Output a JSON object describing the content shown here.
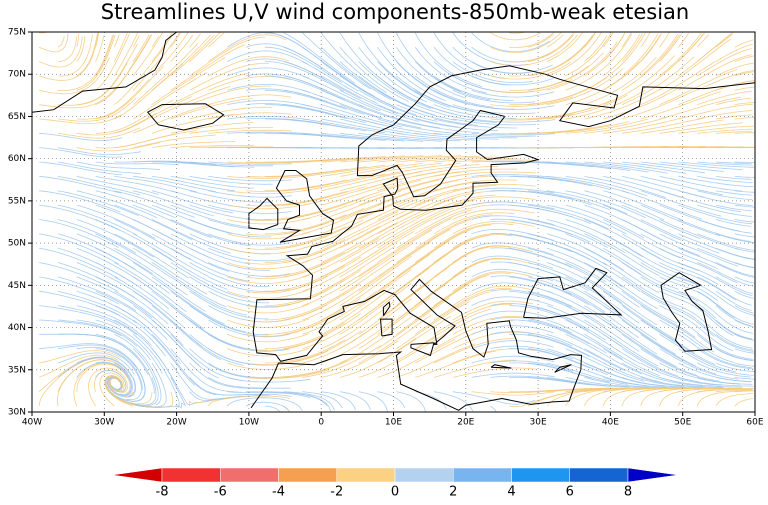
{
  "title": "Streamlines U,V wind components-850mb-weak etesian",
  "map": {
    "lonlim": [
      -40,
      60
    ],
    "latlim": [
      30,
      75
    ],
    "lon_ticks": [
      {
        "value": -40,
        "label": "40W"
      },
      {
        "value": -30,
        "label": "30W"
      },
      {
        "value": -20,
        "label": "20W"
      },
      {
        "value": -10,
        "label": "10W"
      },
      0,
      {
        "value": 10,
        "label": "10E"
      },
      {
        "value": 20,
        "label": "20E"
      },
      {
        "value": 30,
        "label": "30E"
      },
      {
        "value": 40,
        "label": "40E"
      },
      {
        "value": 50,
        "label": "50E"
      },
      {
        "value": 60,
        "label": "60E"
      }
    ],
    "lat_ticks": [
      {
        "value": 30,
        "label": "30N"
      },
      {
        "value": 35,
        "label": "35N"
      },
      {
        "value": 40,
        "label": "40N"
      },
      {
        "value": 45,
        "label": "45N"
      },
      {
        "value": 50,
        "label": "50N"
      },
      {
        "value": 55,
        "label": "55N"
      },
      {
        "value": 60,
        "label": "60N"
      },
      {
        "value": 65,
        "label": "65N"
      },
      {
        "value": 70,
        "label": "70N"
      },
      {
        "value": 75,
        "label": "75N"
      }
    ],
    "grid": true
  },
  "colorbar": {
    "levels": [
      -8,
      -6,
      -4,
      -2,
      0,
      2,
      4,
      6,
      8
    ],
    "colors": [
      "#d20000",
      "#f03232",
      "#f06e6e",
      "#f5a050",
      "#fad282",
      "#b4d2f0",
      "#78b4f0",
      "#1e96f0",
      "#1464d2",
      "#0000c8"
    ]
  }
}
